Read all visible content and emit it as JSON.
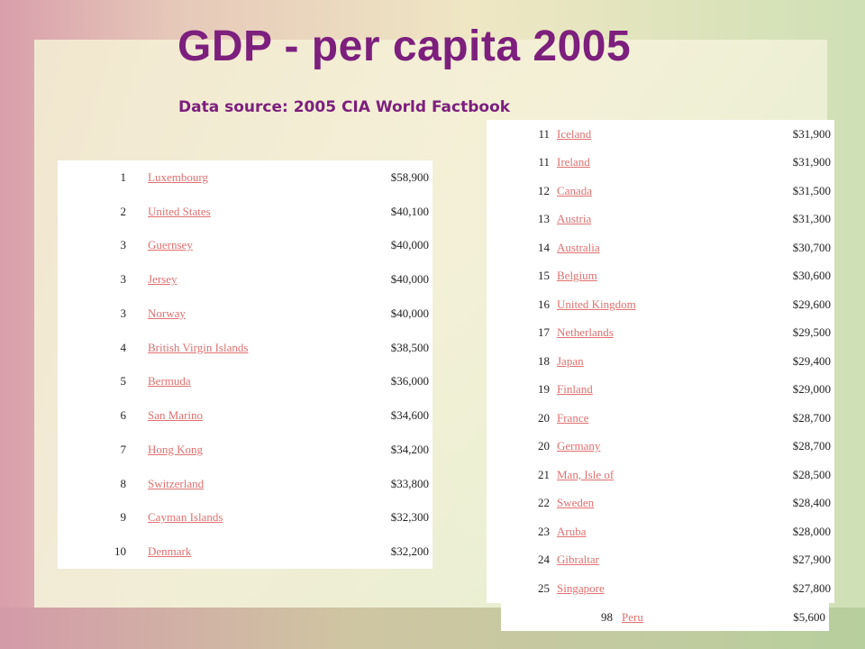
{
  "slide": {
    "title": "GDP - per capita 2005",
    "subtitle": "Data source: 2005 CIA World Factbook",
    "colors": {
      "title": "#7c1f7d",
      "link": "#e07070"
    }
  },
  "left_table": {
    "rows": [
      {
        "rank": "1",
        "country": "Luxembourg",
        "value": "$58,900"
      },
      {
        "rank": "2",
        "country": "United States",
        "value": "$40,100"
      },
      {
        "rank": "3",
        "country": "Guernsey",
        "value": "$40,000"
      },
      {
        "rank": "3",
        "country": "Jersey",
        "value": "$40,000"
      },
      {
        "rank": "3",
        "country": "Norway",
        "value": "$40,000"
      },
      {
        "rank": "4",
        "country": "British Virgin Islands",
        "value": "$38,500"
      },
      {
        "rank": "5",
        "country": "Bermuda",
        "value": "$36,000"
      },
      {
        "rank": "6",
        "country": "San Marino",
        "value": "$34,600"
      },
      {
        "rank": "7",
        "country": "Hong Kong",
        "value": "$34,200"
      },
      {
        "rank": "8",
        "country": "Switzerland",
        "value": "$33,800"
      },
      {
        "rank": "9",
        "country": "Cayman Islands",
        "value": "$32,300"
      },
      {
        "rank": "10",
        "country": "Denmark",
        "value": "$32,200"
      }
    ]
  },
  "right_table": {
    "rows": [
      {
        "rank": "11",
        "country": "Iceland",
        "value": "$31,900"
      },
      {
        "rank": "11",
        "country": "Ireland",
        "value": "$31,900"
      },
      {
        "rank": "12",
        "country": "Canada",
        "value": "$31,500"
      },
      {
        "rank": "13",
        "country": "Austria",
        "value": "$31,300"
      },
      {
        "rank": "14",
        "country": "Australia",
        "value": "$30,700"
      },
      {
        "rank": "15",
        "country": "Belgium",
        "value": "$30,600"
      },
      {
        "rank": "16",
        "country": "United Kingdom",
        "value": "$29,600"
      },
      {
        "rank": "17",
        "country": "Netherlands",
        "value": "$29,500"
      },
      {
        "rank": "18",
        "country": "Japan",
        "value": "$29,400"
      },
      {
        "rank": "19",
        "country": "Finland",
        "value": "$29,000"
      },
      {
        "rank": "20",
        "country": "France",
        "value": "$28,700"
      },
      {
        "rank": "20",
        "country": "Germany",
        "value": "$28,700"
      },
      {
        "rank": "21",
        "country": "Man, Isle of",
        "value": "$28,500"
      },
      {
        "rank": "22",
        "country": "Sweden",
        "value": "$28,400"
      },
      {
        "rank": "23",
        "country": "Aruba",
        "value": "$28,000"
      },
      {
        "rank": "24",
        "country": "Gibraltar",
        "value": "$27,900"
      },
      {
        "rank": "25",
        "country": "Singapore",
        "value": "$27,800"
      }
    ]
  },
  "extra_table": {
    "rows": [
      {
        "rank": "98",
        "country": "Peru",
        "value": "$5,600"
      }
    ]
  }
}
